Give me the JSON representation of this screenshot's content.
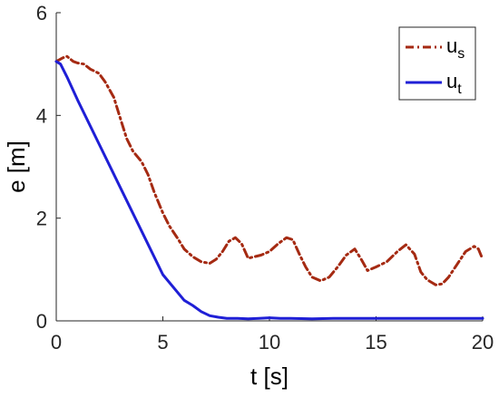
{
  "chart_data": {
    "type": "line",
    "xlabel": "t [s]",
    "ylabel": "e [m]",
    "xlim": [
      0,
      20
    ],
    "ylim": [
      0,
      6
    ],
    "xticks": [
      "0",
      "5",
      "10",
      "15",
      "20"
    ],
    "yticks": [
      "0",
      "2",
      "4",
      "6"
    ],
    "grid": false,
    "legend_position": "top-right",
    "series": [
      {
        "name_base": "u",
        "name_sub": "s",
        "color": "#a52a12",
        "style": "dash-dot",
        "x": [
          0,
          0.3,
          0.5,
          0.8,
          1.0,
          1.3,
          1.6,
          2.0,
          2.3,
          2.7,
          3.0,
          3.3,
          3.6,
          4.0,
          4.3,
          4.6,
          5.0,
          5.3,
          5.7,
          6.0,
          6.4,
          6.8,
          7.2,
          7.5,
          7.8,
          8.1,
          8.4,
          8.7,
          9.0,
          9.3,
          9.6,
          10.0,
          10.4,
          10.8,
          11.1,
          11.4,
          11.7,
          12.0,
          12.4,
          12.8,
          13.2,
          13.6,
          14.0,
          14.3,
          14.6,
          15.0,
          15.5,
          16.0,
          16.4,
          16.8,
          17.1,
          17.4,
          17.8,
          18.1,
          18.4,
          18.8,
          19.2,
          19.6,
          19.8,
          20.0
        ],
        "y": [
          5.05,
          5.12,
          5.15,
          5.05,
          5.02,
          5.0,
          4.9,
          4.82,
          4.65,
          4.35,
          3.95,
          3.55,
          3.3,
          3.1,
          2.85,
          2.5,
          2.1,
          1.85,
          1.6,
          1.4,
          1.25,
          1.15,
          1.12,
          1.2,
          1.35,
          1.55,
          1.62,
          1.5,
          1.22,
          1.25,
          1.28,
          1.35,
          1.5,
          1.62,
          1.58,
          1.3,
          1.05,
          0.85,
          0.78,
          0.85,
          1.05,
          1.28,
          1.4,
          1.2,
          0.98,
          1.05,
          1.15,
          1.35,
          1.48,
          1.3,
          0.95,
          0.8,
          0.7,
          0.72,
          0.85,
          1.1,
          1.35,
          1.45,
          1.4,
          1.2
        ]
      },
      {
        "name_base": "u",
        "name_sub": "t",
        "color": "#1f1fd6",
        "style": "solid",
        "x": [
          0,
          0.2,
          0.5,
          1.0,
          2.0,
          3.0,
          4.0,
          5.0,
          6.0,
          6.4,
          6.8,
          7.2,
          7.6,
          8.0,
          8.5,
          9.0,
          9.5,
          10.0,
          10.5,
          11.0,
          12.0,
          13.0,
          14.0,
          15.0,
          16.0,
          17.0,
          18.0,
          19.0,
          20.0
        ],
        "y": [
          5.05,
          5.0,
          4.75,
          4.3,
          3.45,
          2.6,
          1.75,
          0.9,
          0.4,
          0.3,
          0.18,
          0.1,
          0.07,
          0.05,
          0.05,
          0.04,
          0.05,
          0.06,
          0.05,
          0.05,
          0.04,
          0.05,
          0.05,
          0.05,
          0.05,
          0.05,
          0.05,
          0.05,
          0.05
        ]
      }
    ]
  }
}
